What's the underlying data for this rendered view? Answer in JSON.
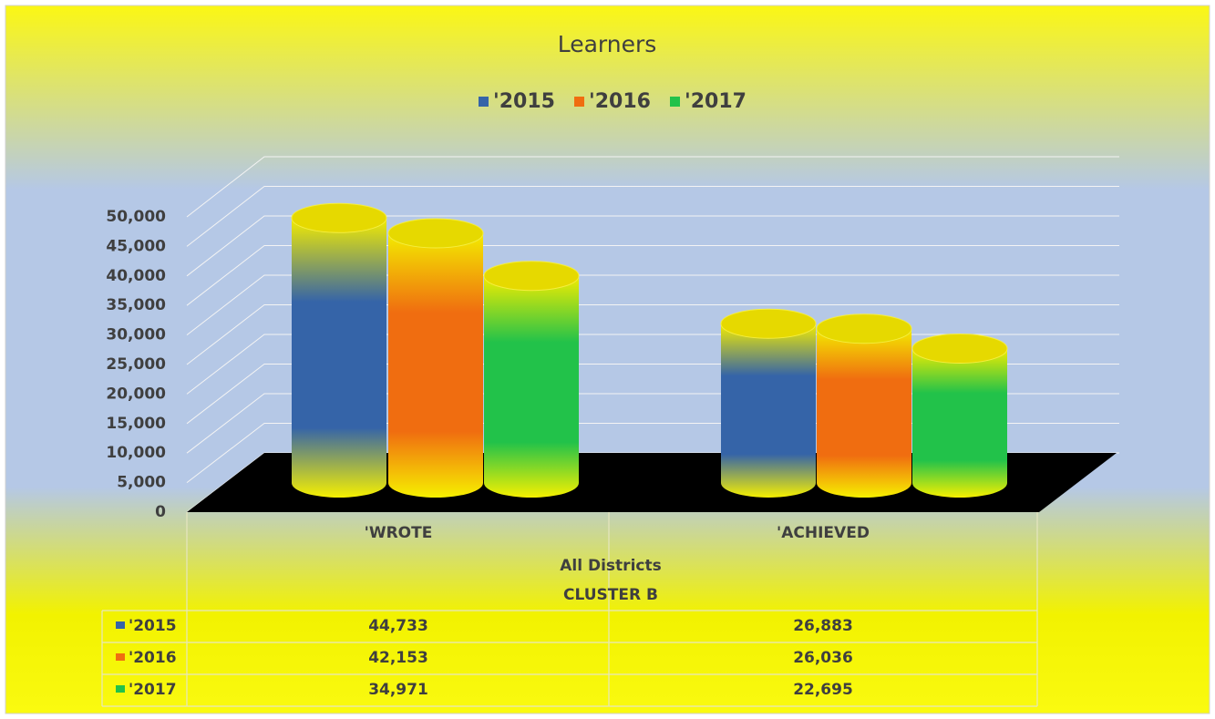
{
  "chart_data": {
    "type": "bar3d",
    "title": "Learners",
    "categories": [
      "'WROTE",
      "'ACHIEVED"
    ],
    "category_groups": [
      "All Districts",
      "CLUSTER B"
    ],
    "series": [
      {
        "name": "'2015",
        "color": "#3564a8",
        "values": [
          44733,
          26883
        ],
        "value_labels": [
          "44,733",
          "26,883"
        ]
      },
      {
        "name": "'2016",
        "color": "#f06d10",
        "values": [
          42153,
          26036
        ],
        "value_labels": [
          "42,153",
          "26,036"
        ]
      },
      {
        "name": "'2017",
        "color": "#22c24a",
        "values": [
          34971,
          22695
        ],
        "value_labels": [
          "34,971",
          "22,695"
        ]
      }
    ],
    "ylim": [
      0,
      50000
    ],
    "yticks": [
      0,
      {
        "value": 5000,
        "label": "5,000"
      },
      {
        "value": 10000,
        "label": "10,000"
      },
      {
        "value": 15000,
        "label": "15,000"
      },
      {
        "value": 20000,
        "label": "20,000"
      },
      {
        "value": 25000,
        "label": "25,000"
      },
      {
        "value": 30000,
        "label": "30,000"
      },
      {
        "value": 35000,
        "label": "35,000"
      },
      {
        "value": 40000,
        "label": "40,000"
      },
      {
        "value": 45000,
        "label": "45,000"
      },
      {
        "value": 50000,
        "label": "50,000"
      }
    ],
    "grid": true,
    "legend": "top"
  }
}
